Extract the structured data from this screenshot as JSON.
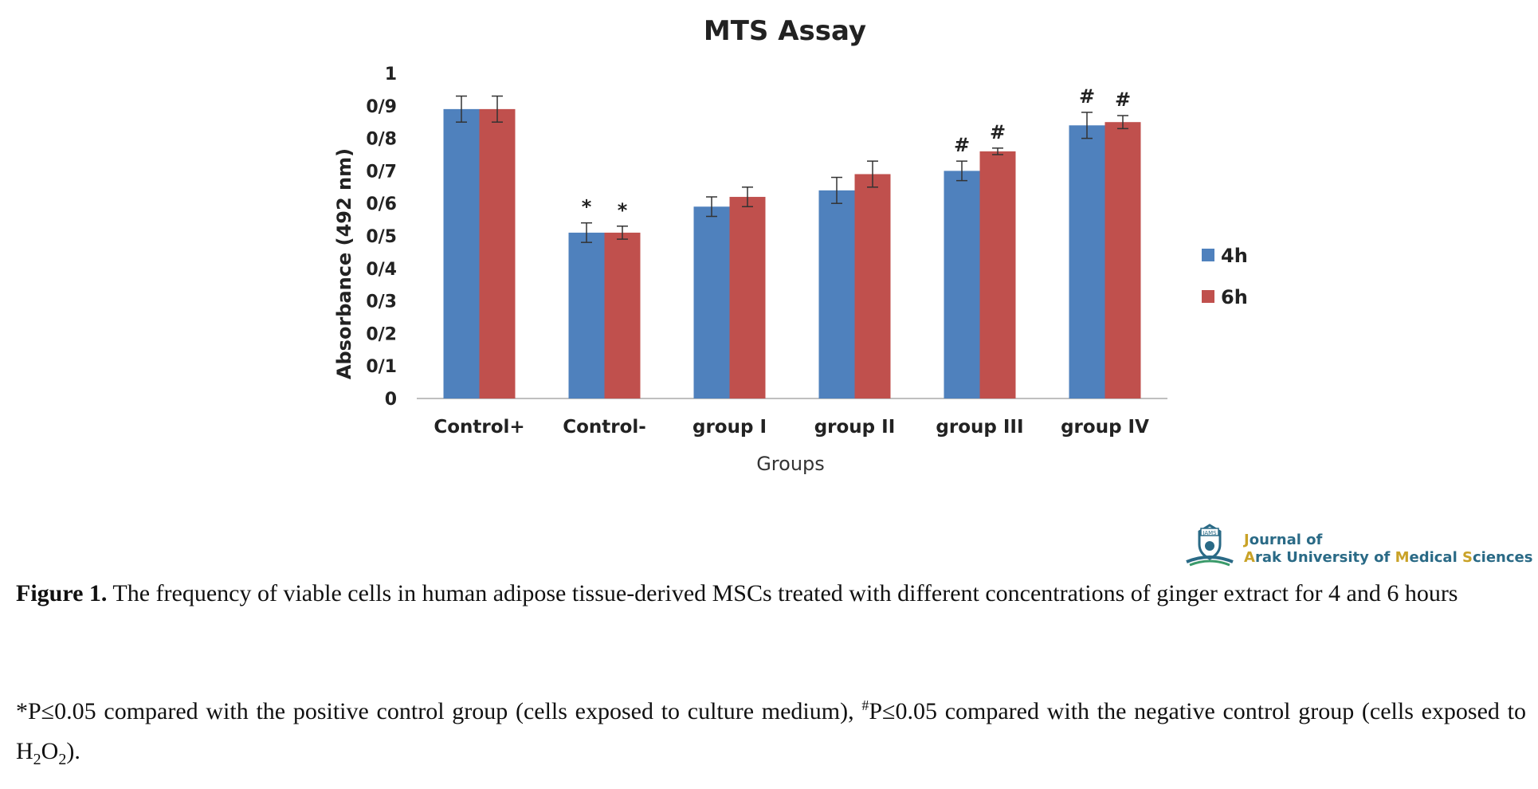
{
  "chart_data": {
    "type": "bar",
    "title": "MTS Assay",
    "xlabel": "Groups",
    "ylabel": "Absorbance (492 nm)",
    "categories": [
      "Control+",
      "Control-",
      "group I",
      "group II",
      "group III",
      "group IV"
    ],
    "ylim": [
      0,
      1
    ],
    "yticks": [
      "0",
      "0/1",
      "0/2",
      "0/3",
      "0/4",
      "0/5",
      "0/6",
      "0/7",
      "0/8",
      "0/9",
      "1"
    ],
    "series": [
      {
        "name": "4h",
        "color": "#4F81BD",
        "values": [
          0.89,
          0.51,
          0.59,
          0.64,
          0.7,
          0.84
        ],
        "errors": [
          0.04,
          0.03,
          0.03,
          0.04,
          0.03,
          0.04
        ],
        "markers": [
          "",
          "*",
          "",
          "",
          "#",
          "#"
        ]
      },
      {
        "name": "6h",
        "color": "#C0504D",
        "values": [
          0.89,
          0.51,
          0.62,
          0.69,
          0.76,
          0.85
        ],
        "errors": [
          0.04,
          0.02,
          0.03,
          0.04,
          0.01,
          0.02
        ],
        "markers": [
          "",
          "*",
          "",
          "",
          "#",
          "#"
        ]
      }
    ],
    "legend_position": "right",
    "grid": false
  },
  "logo": {
    "line1_a": "J",
    "line1_b": "ournal of",
    "line2_parts": [
      "A",
      "rak University of ",
      "M",
      "edical ",
      "S",
      "ciences"
    ],
    "badge": "JAMS"
  },
  "caption": {
    "label": "Figure 1.",
    "text": " The frequency of viable cells in human adipose tissue-derived MSCs treated with different concentrations of ginger extract for 4 and 6 hours"
  },
  "note": {
    "part1": "*P≤0.05 compared with the positive control group (cells exposed to culture medium), ",
    "sup": "#",
    "part2": "P≤0.05 compared with the negative control group (cells exposed to H",
    "sub1": "2",
    "mid": "O",
    "sub2": "2",
    "end": ")."
  }
}
